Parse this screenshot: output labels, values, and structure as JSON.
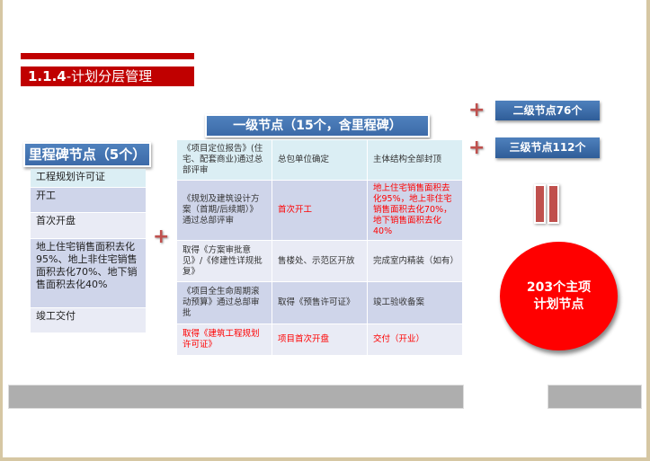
{
  "title": {
    "number": "1.1.4",
    "text": "-计划分层管理"
  },
  "milestone": {
    "header": "里程碑节点（5个）",
    "items": [
      "工程规划许可证",
      "开工",
      "首次开盘",
      "地上住宅销售面积去化95%、地上非住宅销售面积去化70%、地下销售面积去化40%",
      "竣工交付"
    ]
  },
  "level1": {
    "header": "一级节点（15个，含里程碑）",
    "rows": [
      [
        {
          "text": "《项目定位报告》(住宅、配套商业)通过总部评审",
          "red": false
        },
        {
          "text": "总包单位确定",
          "red": false
        },
        {
          "text": "主体结构全部封顶",
          "red": false
        }
      ],
      [
        {
          "text": "《规划及建筑设计方案（首期/后续期）》通过总部评审",
          "red": false
        },
        {
          "text": "首次开工",
          "red": true
        },
        {
          "text": "地上住宅销售面积去化95%，地上非住宅销售面积去化70%，地下销售面积去化40%",
          "red": true
        }
      ],
      [
        {
          "text": "取得《方案审批意见》/《修建性详规批复》",
          "red": false
        },
        {
          "text": "售楼处、示范区开放",
          "red": false
        },
        {
          "text": "完成室内精装（如有）",
          "red": false
        }
      ],
      [
        {
          "text": "《项目全生命周期滚动预算》通过总部审批",
          "red": false
        },
        {
          "text": "取得《预售许可证》",
          "red": false
        },
        {
          "text": "竣工验收备案",
          "red": false
        }
      ],
      [
        {
          "text": "取得《建筑工程规划许可证》",
          "red": true
        },
        {
          "text": "项目首次开盘",
          "red": true
        },
        {
          "text": "交付（开业）",
          "red": true
        }
      ]
    ]
  },
  "level2": "二级节点76个",
  "level3": "三级节点112个",
  "plus_symbol": "+",
  "total": {
    "line1": "203个主项",
    "line2": "计划节点"
  },
  "colors": {
    "accent_red": "#c00000",
    "blue": "#4f81bd",
    "highlight_red": "#ff0000"
  }
}
